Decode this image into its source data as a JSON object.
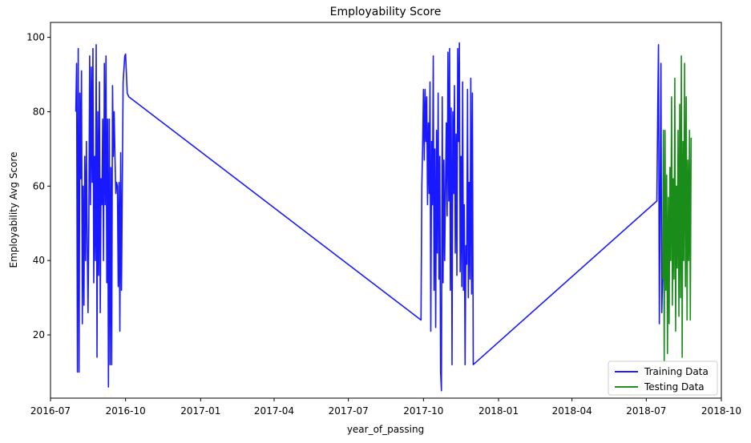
{
  "chart_data": {
    "type": "line",
    "title": "Employability Score",
    "xlabel": "year_of_passing",
    "ylabel": "Employability Avg Score",
    "xlim": [
      "2016-07-01",
      "2018-10-01"
    ],
    "ylim": [
      3,
      104
    ],
    "x_ticks": [
      "2016-07",
      "2016-10",
      "2017-01",
      "2017-04",
      "2017-07",
      "2017-10",
      "2018-01",
      "2018-04",
      "2018-07",
      "2018-10"
    ],
    "y_ticks": [
      20,
      40,
      60,
      80,
      100
    ],
    "grid": false,
    "legend": "lower-right",
    "series": [
      {
        "name": "Training Data",
        "color": "#0000ff",
        "points": [
          [
            "2016-08-01",
            80
          ],
          [
            "2016-08-02",
            93
          ],
          [
            "2016-08-03",
            10
          ],
          [
            "2016-08-04",
            97
          ],
          [
            "2016-08-05",
            10
          ],
          [
            "2016-08-06",
            85
          ],
          [
            "2016-08-07",
            62
          ],
          [
            "2016-08-08",
            91
          ],
          [
            "2016-08-09",
            23
          ],
          [
            "2016-08-10",
            60
          ],
          [
            "2016-08-11",
            28
          ],
          [
            "2016-08-12",
            68
          ],
          [
            "2016-08-13",
            40
          ],
          [
            "2016-08-14",
            72
          ],
          [
            "2016-08-15",
            45
          ],
          [
            "2016-08-16",
            26
          ],
          [
            "2016-08-17",
            50
          ],
          [
            "2016-08-18",
            95
          ],
          [
            "2016-08-19",
            55
          ],
          [
            "2016-08-20",
            92
          ],
          [
            "2016-08-21",
            61
          ],
          [
            "2016-08-22",
            97
          ],
          [
            "2016-08-23",
            34
          ],
          [
            "2016-08-24",
            68
          ],
          [
            "2016-08-25",
            40
          ],
          [
            "2016-08-26",
            98
          ],
          [
            "2016-08-27",
            14
          ],
          [
            "2016-08-28",
            80
          ],
          [
            "2016-08-29",
            36
          ],
          [
            "2016-08-30",
            88
          ],
          [
            "2016-08-31",
            26
          ],
          [
            "2016-09-01",
            62
          ],
          [
            "2016-09-02",
            55
          ],
          [
            "2016-09-03",
            78
          ],
          [
            "2016-09-04",
            40
          ],
          [
            "2016-09-05",
            93
          ],
          [
            "2016-09-06",
            55
          ],
          [
            "2016-09-07",
            95
          ],
          [
            "2016-09-08",
            34
          ],
          [
            "2016-09-09",
            78
          ],
          [
            "2016-09-10",
            6
          ],
          [
            "2016-09-11",
            78
          ],
          [
            "2016-09-12",
            12
          ],
          [
            "2016-09-13",
            65
          ],
          [
            "2016-09-14",
            12
          ],
          [
            "2016-09-15",
            87
          ],
          [
            "2016-09-16",
            68
          ],
          [
            "2016-09-17",
            80
          ],
          [
            "2016-09-18",
            68
          ],
          [
            "2016-09-19",
            58
          ],
          [
            "2016-09-20",
            61
          ],
          [
            "2016-09-21",
            60
          ],
          [
            "2016-09-22",
            33
          ],
          [
            "2016-09-23",
            61
          ],
          [
            "2016-09-24",
            21
          ],
          [
            "2016-09-25",
            69
          ],
          [
            "2016-09-26",
            32
          ],
          [
            "2016-09-28",
            88
          ],
          [
            "2016-09-30",
            95
          ],
          [
            "2016-10-01",
            95.5
          ],
          [
            "2016-10-03",
            85
          ],
          [
            "2016-10-05",
            84
          ],
          [
            "2017-09-28",
            24
          ],
          [
            "2017-09-29",
            60
          ],
          [
            "2017-09-30",
            71
          ],
          [
            "2017-10-01",
            86
          ],
          [
            "2017-10-02",
            67
          ],
          [
            "2017-10-03",
            86
          ],
          [
            "2017-10-04",
            72
          ],
          [
            "2017-10-05",
            84
          ],
          [
            "2017-10-06",
            55
          ],
          [
            "2017-10-07",
            77
          ],
          [
            "2017-10-08",
            58
          ],
          [
            "2017-10-09",
            88
          ],
          [
            "2017-10-10",
            21
          ],
          [
            "2017-10-11",
            72
          ],
          [
            "2017-10-12",
            55
          ],
          [
            "2017-10-13",
            95
          ],
          [
            "2017-10-14",
            32
          ],
          [
            "2017-10-15",
            70
          ],
          [
            "2017-10-16",
            22
          ],
          [
            "2017-10-17",
            75
          ],
          [
            "2017-10-18",
            42
          ],
          [
            "2017-10-19",
            85
          ],
          [
            "2017-10-20",
            35
          ],
          [
            "2017-10-21",
            68
          ],
          [
            "2017-10-22",
            10
          ],
          [
            "2017-10-23",
            5
          ],
          [
            "2017-10-24",
            84
          ],
          [
            "2017-10-25",
            34
          ],
          [
            "2017-10-26",
            67
          ],
          [
            "2017-10-27",
            40
          ],
          [
            "2017-10-28",
            60
          ],
          [
            "2017-10-29",
            77
          ],
          [
            "2017-10-30",
            52
          ],
          [
            "2017-10-31",
            96
          ],
          [
            "2017-11-01",
            56
          ],
          [
            "2017-11-02",
            97
          ],
          [
            "2017-11-03",
            32
          ],
          [
            "2017-11-04",
            81
          ],
          [
            "2017-11-05",
            12
          ],
          [
            "2017-11-06",
            80
          ],
          [
            "2017-11-07",
            58
          ],
          [
            "2017-11-08",
            87
          ],
          [
            "2017-11-09",
            42
          ],
          [
            "2017-11-10",
            74
          ],
          [
            "2017-11-11",
            36
          ],
          [
            "2017-11-12",
            97
          ],
          [
            "2017-11-13",
            72
          ],
          [
            "2017-11-14",
            98.5
          ],
          [
            "2017-11-15",
            37
          ],
          [
            "2017-11-16",
            68
          ],
          [
            "2017-11-17",
            33
          ],
          [
            "2017-11-18",
            88
          ],
          [
            "2017-11-19",
            32
          ],
          [
            "2017-11-20",
            55
          ],
          [
            "2017-11-21",
            12
          ],
          [
            "2017-11-22",
            44
          ],
          [
            "2017-11-23",
            39
          ],
          [
            "2017-11-24",
            86
          ],
          [
            "2017-11-25",
            30
          ],
          [
            "2017-11-26",
            61
          ],
          [
            "2017-11-27",
            35
          ],
          [
            "2017-11-28",
            89
          ],
          [
            "2017-11-29",
            31
          ],
          [
            "2017-11-30",
            85
          ],
          [
            "2017-12-01",
            12
          ],
          [
            "2018-07-14",
            56
          ],
          [
            "2018-07-15",
            80
          ],
          [
            "2018-07-16",
            98
          ],
          [
            "2018-07-17",
            23
          ],
          [
            "2018-07-18",
            56
          ],
          [
            "2018-07-19",
            93
          ],
          [
            "2018-07-20",
            26
          ],
          [
            "2018-07-21",
            35
          ]
        ]
      },
      {
        "name": "Testing Data",
        "color": "#008000",
        "points": [
          [
            "2018-07-21",
            35
          ],
          [
            "2018-07-22",
            75
          ],
          [
            "2018-07-23",
            12
          ],
          [
            "2018-07-24",
            75
          ],
          [
            "2018-07-25",
            32
          ],
          [
            "2018-07-26",
            63
          ],
          [
            "2018-07-27",
            15
          ],
          [
            "2018-07-28",
            57
          ],
          [
            "2018-07-29",
            23
          ],
          [
            "2018-07-30",
            65
          ],
          [
            "2018-07-31",
            40
          ],
          [
            "2018-08-01",
            84
          ],
          [
            "2018-08-02",
            28
          ],
          [
            "2018-08-03",
            62
          ],
          [
            "2018-08-04",
            35
          ],
          [
            "2018-08-05",
            89
          ],
          [
            "2018-08-06",
            21
          ],
          [
            "2018-08-07",
            60
          ],
          [
            "2018-08-08",
            38
          ],
          [
            "2018-08-09",
            75
          ],
          [
            "2018-08-10",
            25
          ],
          [
            "2018-08-11",
            82
          ],
          [
            "2018-08-12",
            30
          ],
          [
            "2018-08-13",
            95
          ],
          [
            "2018-08-14",
            14
          ],
          [
            "2018-08-15",
            72
          ],
          [
            "2018-08-16",
            40
          ],
          [
            "2018-08-17",
            93
          ],
          [
            "2018-08-18",
            33
          ],
          [
            "2018-08-19",
            84
          ],
          [
            "2018-08-20",
            24
          ],
          [
            "2018-08-21",
            67
          ],
          [
            "2018-08-22",
            40
          ],
          [
            "2018-08-23",
            75
          ],
          [
            "2018-08-24",
            24
          ],
          [
            "2018-08-25",
            73
          ]
        ]
      }
    ]
  }
}
